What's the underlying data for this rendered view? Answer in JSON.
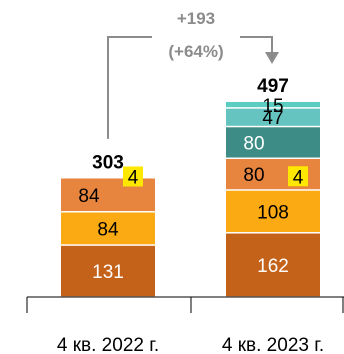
{
  "chart_data": {
    "type": "bar",
    "stacked": true,
    "categories": [
      "4 кв. 2022 г.",
      "4 кв. 2023 г."
    ],
    "series": [
      {
        "values": [
          131,
          162
        ],
        "color": "#c5621a",
        "text_color": "#ffffff"
      },
      {
        "values": [
          84,
          108
        ],
        "color": "#fbaa13",
        "text_color": "#000000"
      },
      {
        "values": [
          84,
          80
        ],
        "color": "#e7853f",
        "text_color": "#000000"
      },
      {
        "values": [
          null,
          80
        ],
        "color": "#3e8c86",
        "text_color": "#ffffff"
      },
      {
        "values": [
          null,
          47
        ],
        "color": "#65c4c0",
        "text_color": "#000000"
      },
      {
        "values": [
          null,
          15
        ],
        "color": "#5bcdc0",
        "text_color": "#000000"
      },
      {
        "values": [
          4,
          4
        ],
        "color": "#ffe800",
        "text_color": "#000000",
        "badge": true
      }
    ],
    "totals": [
      "303",
      "497"
    ],
    "change": {
      "line1": "+193",
      "line2": "(+64%)",
      "color": "#8c8c8c"
    },
    "ylim": [
      0,
      497
    ],
    "grid": false,
    "legend": "none"
  }
}
